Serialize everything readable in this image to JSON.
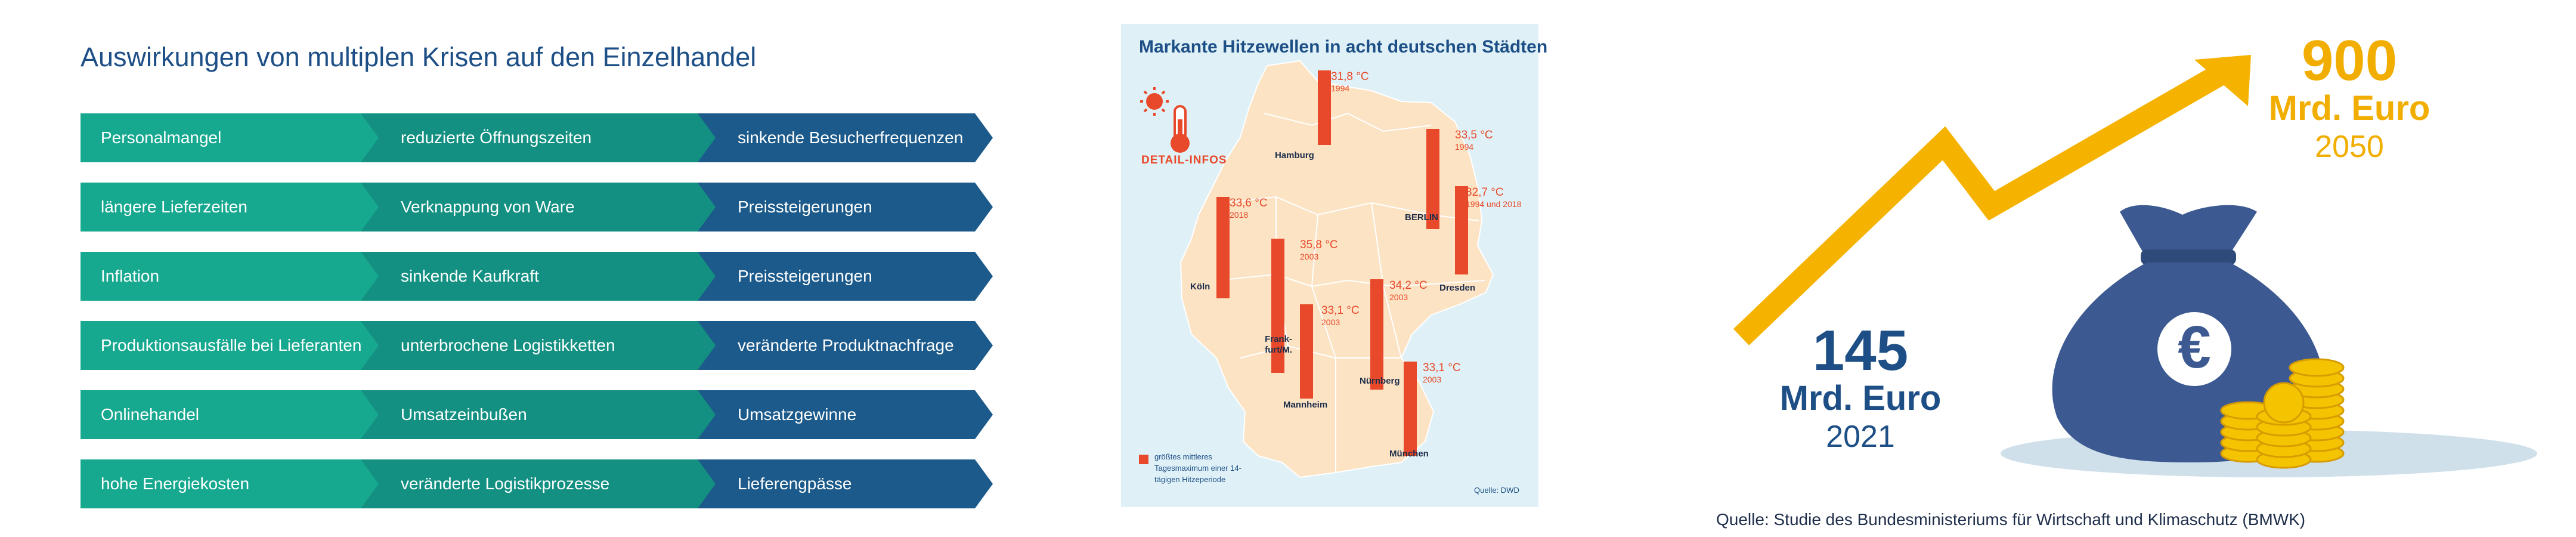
{
  "crisis": {
    "title": "Auswirkungen von multiplen Krisen auf den Einzelhandel",
    "rows": [
      [
        "Personalmangel",
        "reduzierte Öffnungszeiten",
        "sinkende Besucherfrequenzen"
      ],
      [
        "längere Lieferzeiten",
        "Verknappung von Ware",
        "Preissteigerungen"
      ],
      [
        "Inflation",
        "sinkende Kaufkraft",
        "Preissteigerungen"
      ],
      [
        "Produktionsausfälle bei Lieferanten",
        "unterbrochene Logistikketten",
        "veränderte Produktnachfrage"
      ],
      [
        "Onlinehandel",
        "Umsatzeinbußen",
        "Umsatzgewinne"
      ],
      [
        "hohe Energiekosten",
        "veränderte Logistikprozesse",
        "Lieferengpässe"
      ]
    ],
    "colors": [
      "#17a890",
      "#139082",
      "#1b5a8a"
    ]
  },
  "heatmap": {
    "title": "Markante Hitzewellen in acht deutschen Städten",
    "detail_label": "DETAIL-INFOS",
    "legend": "größtes mittleres Tagesmaximum einer 14-tägigen Hitzeperiode",
    "source": "Quelle: DWD",
    "cities": [
      {
        "name": "Hamburg",
        "temp": "31,8 °C",
        "year": "1994",
        "value": 31.8
      },
      {
        "name": "BERLIN",
        "temp": "33,5 °C",
        "year": "1994",
        "value": 33.5
      },
      {
        "name": "Köln",
        "temp": "33,6 °C",
        "year": "2018",
        "value": 33.6
      },
      {
        "name": "Dresden",
        "temp": "32,7 °C",
        "year": "1994 und 2018",
        "value": 32.7
      },
      {
        "name": "Frank- furt/M.",
        "temp": "35,8 °C",
        "year": "2003",
        "value": 35.8
      },
      {
        "name": "Mannheim",
        "temp": "33,1 °C",
        "year": "2003",
        "value": 33.1
      },
      {
        "name": "Nürnberg",
        "temp": "34,2 °C",
        "year": "2003",
        "value": 34.2
      },
      {
        "name": "München",
        "temp": "33,1 °C",
        "year": "2003",
        "value": 33.1
      }
    ],
    "bar_color": "#e8492a",
    "map_color": "#fbe3c4"
  },
  "growth": {
    "start": {
      "value": "145",
      "unit": "Mrd. Euro",
      "year": "2021"
    },
    "end": {
      "value": "900",
      "unit": "Mrd. Euro",
      "year": "2050"
    },
    "currency_symbol": "€",
    "source": "Quelle: Studie des Bundesministeriums für Wirtschaft und Klimaschutz (BMWK)",
    "arrow_color": "#f5b300",
    "bag_color": "#3c5a91",
    "coin_color": "#f5c400"
  }
}
